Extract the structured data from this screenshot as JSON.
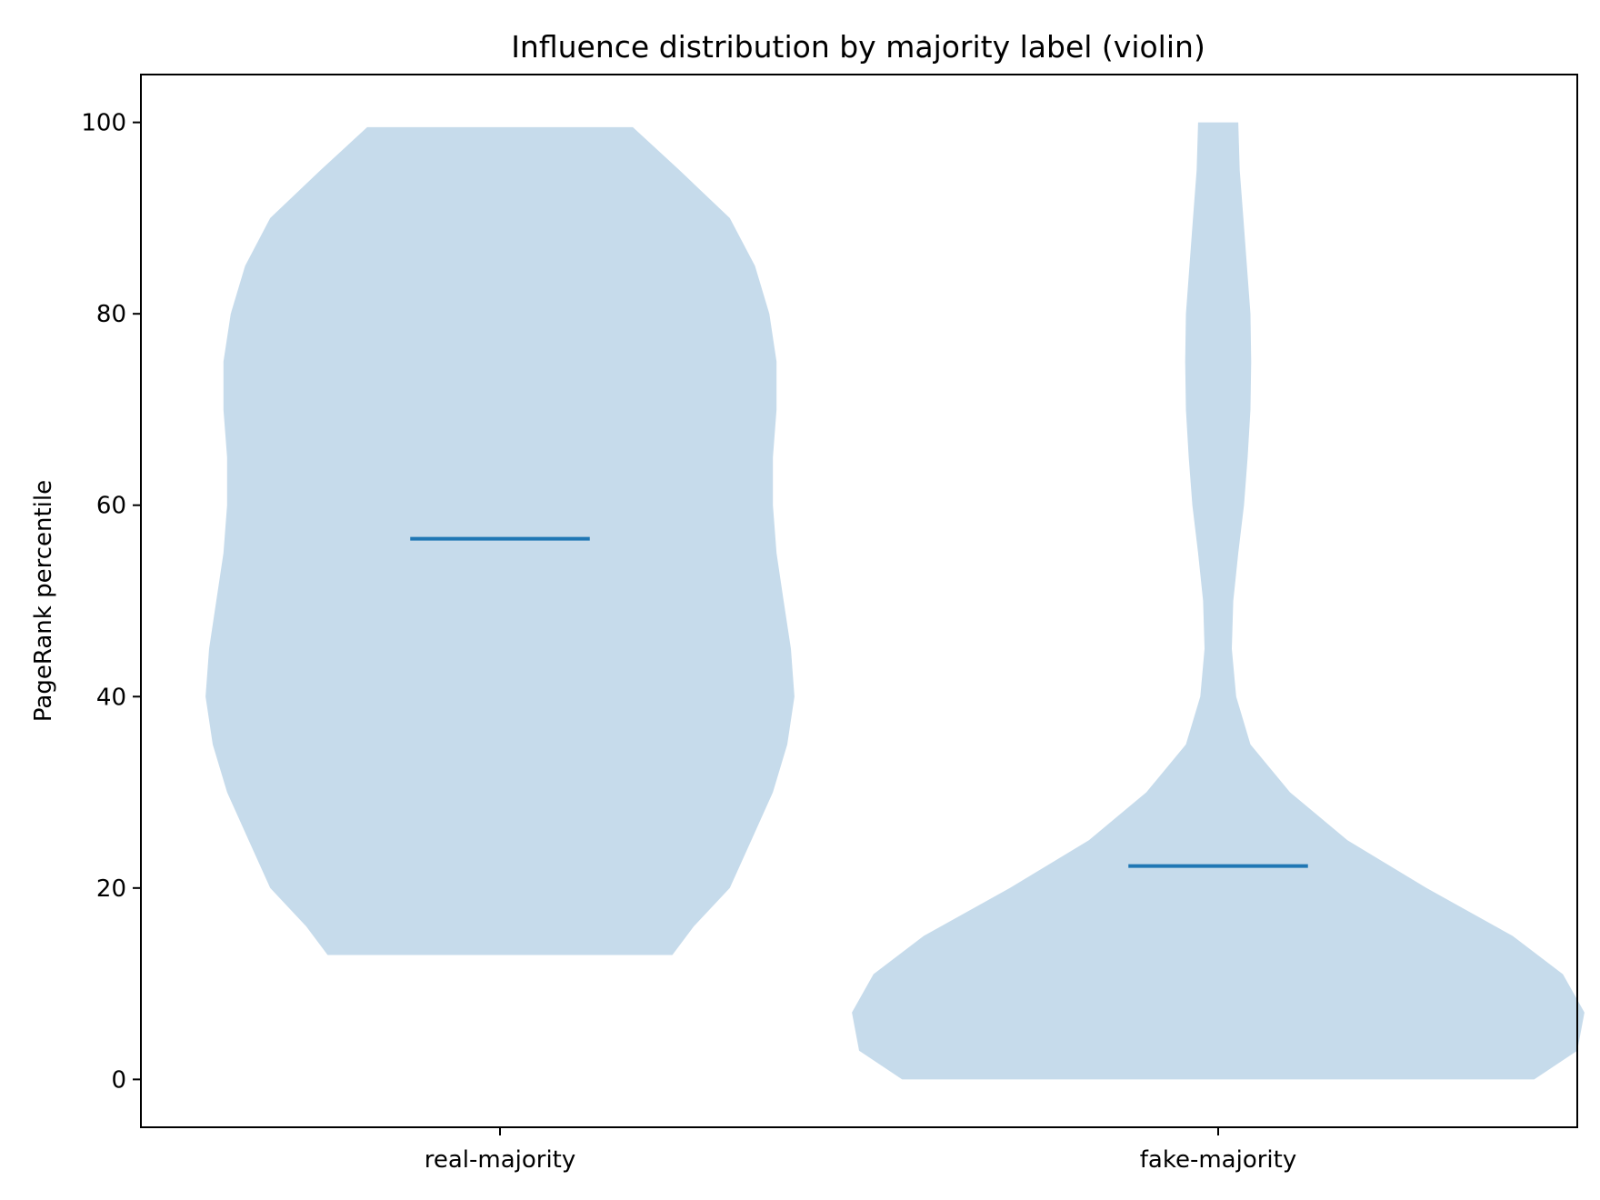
{
  "chart_data": {
    "type": "violin",
    "title": "Influence distribution by majority label (violin)",
    "xlabel": "",
    "ylabel": "PageRank percentile",
    "categories": [
      "real-majority",
      "fake-majority"
    ],
    "ylim": [
      -5,
      105
    ],
    "yticks": [
      0,
      20,
      40,
      60,
      80,
      100
    ],
    "grid": false,
    "colors": {
      "body": "#c6dbeb",
      "median": "#1f77b4"
    },
    "violins": [
      {
        "category": "real-majority",
        "median": 56.5,
        "min": 13.0,
        "max": 99.5,
        "profile": [
          [
            13.0,
            0.24
          ],
          [
            16,
            0.27
          ],
          [
            20,
            0.32
          ],
          [
            25,
            0.35
          ],
          [
            30,
            0.38
          ],
          [
            35,
            0.4
          ],
          [
            40,
            0.41
          ],
          [
            45,
            0.405
          ],
          [
            50,
            0.395
          ],
          [
            55,
            0.385
          ],
          [
            60,
            0.38
          ],
          [
            65,
            0.38
          ],
          [
            70,
            0.385
          ],
          [
            75,
            0.385
          ],
          [
            80,
            0.375
          ],
          [
            85,
            0.355
          ],
          [
            90,
            0.32
          ],
          [
            95,
            0.25
          ],
          [
            99.5,
            0.185
          ]
        ]
      },
      {
        "category": "fake-majority",
        "median": 22.3,
        "min": 0.0,
        "max": 100.0,
        "profile": [
          [
            0.0,
            0.44
          ],
          [
            3,
            0.5
          ],
          [
            7,
            0.51
          ],
          [
            11,
            0.48
          ],
          [
            15,
            0.41
          ],
          [
            20,
            0.29
          ],
          [
            25,
            0.18
          ],
          [
            30,
            0.1
          ],
          [
            35,
            0.045
          ],
          [
            40,
            0.025
          ],
          [
            45,
            0.019
          ],
          [
            50,
            0.021
          ],
          [
            55,
            0.028
          ],
          [
            60,
            0.036
          ],
          [
            65,
            0.041
          ],
          [
            70,
            0.045
          ],
          [
            75,
            0.046
          ],
          [
            80,
            0.045
          ],
          [
            85,
            0.04
          ],
          [
            90,
            0.035
          ],
          [
            95,
            0.03
          ],
          [
            100,
            0.028
          ]
        ]
      }
    ]
  }
}
